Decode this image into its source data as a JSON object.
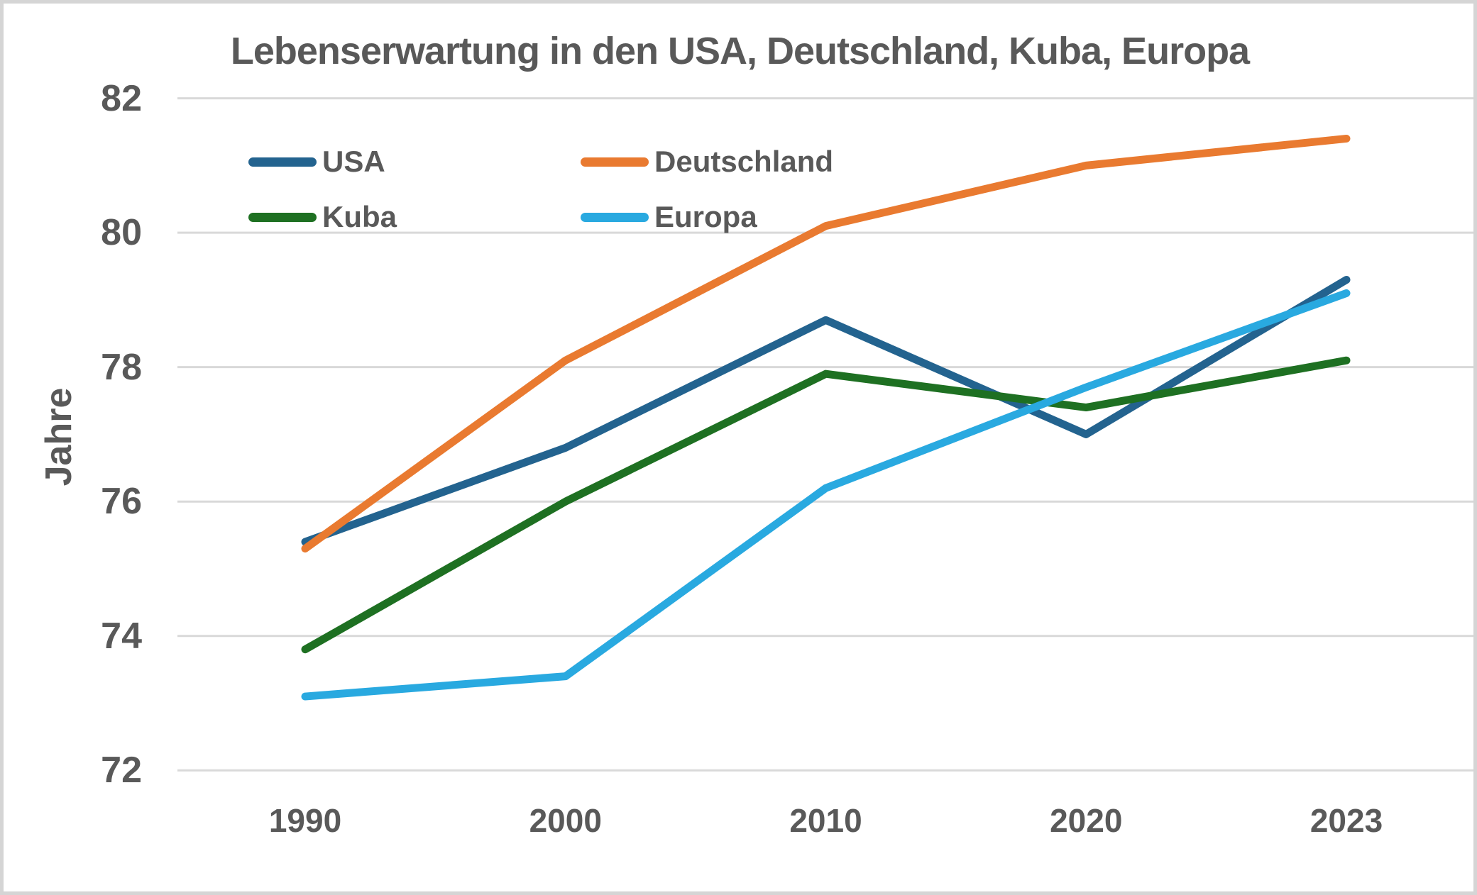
{
  "chart_data": {
    "type": "line",
    "title": "Lebenserwartung in den USA, Deutschland, Kuba, Europa",
    "xlabel": "",
    "ylabel": "Jahre",
    "categories": [
      "1990",
      "2000",
      "2010",
      "2020",
      "2023"
    ],
    "series": [
      {
        "name": "USA",
        "color": "#23638F",
        "values": [
          75.4,
          76.8,
          78.7,
          77.0,
          79.3
        ]
      },
      {
        "name": "Deutschland",
        "color": "#E97A30",
        "values": [
          75.3,
          78.1,
          80.1,
          81.0,
          81.4
        ]
      },
      {
        "name": "Kuba",
        "color": "#1E7022",
        "values": [
          73.8,
          76.0,
          77.9,
          77.4,
          78.1
        ]
      },
      {
        "name": "Europa",
        "color": "#29A9E0",
        "values": [
          73.1,
          73.4,
          76.2,
          77.7,
          79.1
        ]
      }
    ],
    "ylim": [
      72,
      82
    ],
    "y_ticks": [
      82,
      80,
      78,
      76,
      74,
      72
    ],
    "grid": "horizontal-only",
    "gridline_color": "#D9D9D9",
    "text_color": "#595959",
    "legend_position": "inside-top-left",
    "legend_layout": "2x2"
  }
}
